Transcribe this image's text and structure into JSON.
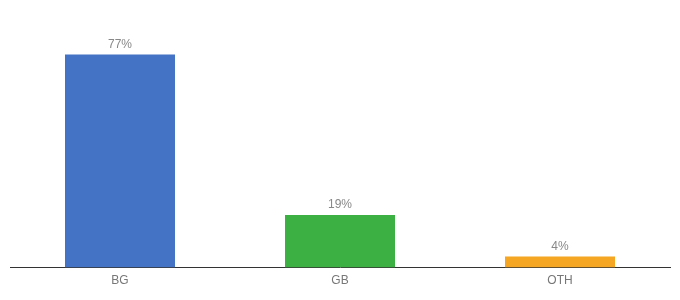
{
  "chart_data": {
    "type": "bar",
    "categories": [
      "BG",
      "GB",
      "OTH"
    ],
    "values": [
      77,
      19,
      4
    ],
    "value_labels": [
      "77%",
      "19%",
      "4%"
    ],
    "colors": [
      "#4472c4",
      "#3cb043",
      "#f5a623"
    ],
    "ylim": [
      0,
      88
    ],
    "data_labels": true,
    "tick_labels": "x",
    "grid": false
  }
}
